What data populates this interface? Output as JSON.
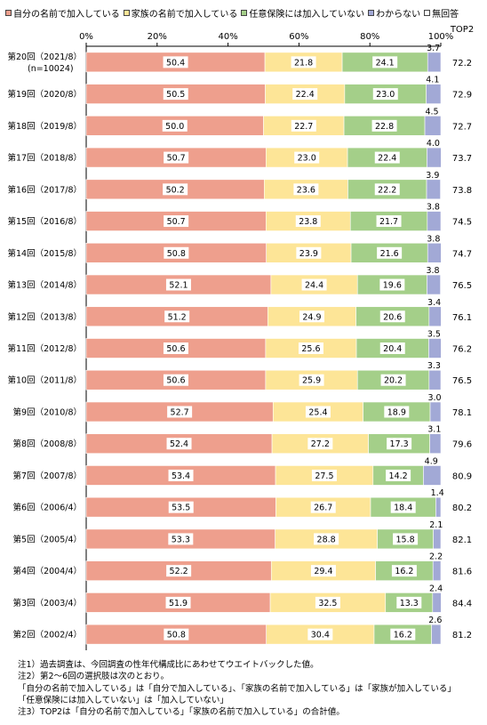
{
  "chart_data": {
    "type": "bar",
    "orientation": "horizontal",
    "stacked": true,
    "xlim": [
      0,
      100
    ],
    "x_ticks": [
      "0%",
      "20%",
      "40%",
      "60%",
      "80%",
      "100%"
    ],
    "extra_column_label": "TOP2",
    "legend_position": "top",
    "categories": [
      "第20回（2021/8）",
      "第19回（2020/8）",
      "第18回（2019/8）",
      "第17回（2018/8）",
      "第16回（2017/8）",
      "第15回（2016/8）",
      "第14回（2015/8）",
      "第13回（2014/8）",
      "第12回（2013/8）",
      "第11回（2012/8）",
      "第10回（2011/8）",
      "第9回（2010/8）",
      "第8回（2008/8）",
      "第7回（2007/8）",
      "第6回（2006/4）",
      "第5回（2005/4）",
      "第4回（2004/4）",
      "第3回（2003/4）",
      "第2回（2002/4）"
    ],
    "category_sublabels": [
      "(n=10024)",
      "",
      "",
      "",
      "",
      "",
      "",
      "",
      "",
      "",
      "",
      "",
      "",
      "",
      "",
      "",
      "",
      "",
      ""
    ],
    "series": [
      {
        "name": "自分の名前で加入している",
        "color": "#ee9f8d",
        "values": [
          50.4,
          50.5,
          50.0,
          50.7,
          50.2,
          50.7,
          50.8,
          52.1,
          51.2,
          50.6,
          50.6,
          52.7,
          52.4,
          53.4,
          53.5,
          53.3,
          52.2,
          51.9,
          50.8
        ]
      },
      {
        "name": "家族の名前で加入している",
        "color": "#fde597",
        "values": [
          21.8,
          22.4,
          22.7,
          23.0,
          23.6,
          23.8,
          23.9,
          24.4,
          24.9,
          25.6,
          25.9,
          25.4,
          27.2,
          27.5,
          26.7,
          28.8,
          29.4,
          32.5,
          30.4
        ]
      },
      {
        "name": "任意保険には加入していない",
        "color": "#a4cf89",
        "values": [
          24.1,
          23.0,
          22.8,
          22.4,
          22.2,
          21.7,
          21.6,
          19.6,
          20.6,
          20.4,
          20.2,
          18.9,
          17.3,
          14.2,
          18.4,
          15.8,
          16.2,
          13.3,
          16.2
        ]
      },
      {
        "name": "わからない",
        "color": "#a2a9d6",
        "values": [
          3.7,
          4.1,
          4.5,
          4.0,
          3.9,
          3.8,
          3.8,
          3.8,
          3.4,
          3.5,
          3.3,
          3.0,
          3.1,
          4.9,
          1.4,
          2.1,
          2.2,
          2.4,
          2.6
        ]
      },
      {
        "name": "無回答",
        "color": "#ffffff",
        "values": [
          0,
          0,
          0,
          0,
          0,
          0,
          0,
          0,
          0,
          0,
          0,
          0,
          0,
          0,
          0,
          0,
          0,
          0,
          0
        ]
      }
    ],
    "top2": [
      72.2,
      72.9,
      72.7,
      73.7,
      73.8,
      74.5,
      74.7,
      76.5,
      76.1,
      76.2,
      76.5,
      78.1,
      79.6,
      80.9,
      80.2,
      82.1,
      81.6,
      84.4,
      81.2
    ]
  },
  "notes": [
    "注1）過去調査は、今回調査の性年代構成比にあわせてウエイトバックした値。",
    "注2）第2～6回の選択肢は次のとおり。",
    "「自分の名前で加入している」は「自分で加入している」、「家族の名前で加入している」は「家族が加入している」",
    "「任意保険には加入していない」は「加入していない」",
    "注3）TOP2は「自分の名前で加入している」「家族の名前で加入している」の合計値。"
  ]
}
